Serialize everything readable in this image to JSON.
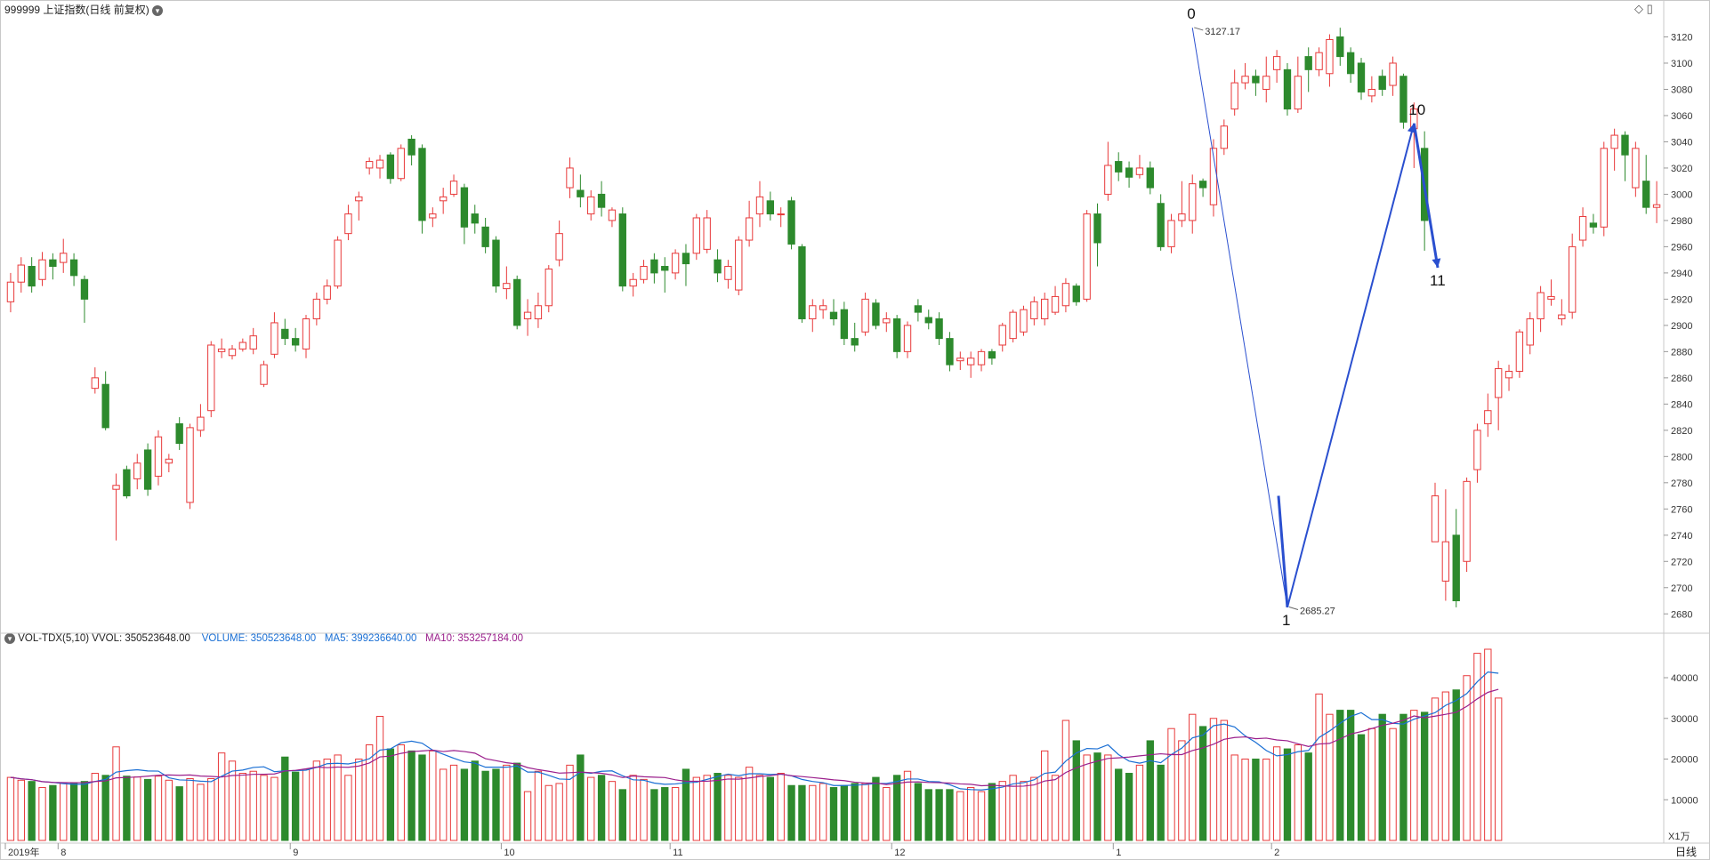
{
  "header": {
    "title": "999999 上证指数(日线 前复权)",
    "toolbar_diamond": "◇",
    "toolbar_box": "▯"
  },
  "volume_header": {
    "indicator": "VOL-TDX(5,10)",
    "vvol": "VVOL: 350523648.00",
    "volume": "VOLUME: 350523648.00",
    "ma5": "MA5: 399236640.00",
    "ma10": "MA10: 353257184.00"
  },
  "footer": {
    "unit": "X1万",
    "period": "日线"
  },
  "colors": {
    "up": "#e8393a",
    "down": "#2d8a2d",
    "ma5": "#1a6fd4",
    "ma10": "#9b1f8c",
    "wave": "#2a4fcf",
    "axis": "#999999"
  },
  "chart_data": [
    {
      "type": "candlestick",
      "title": "999999 上证指数(日线 前复权)",
      "ylim": [
        2670,
        3140
      ],
      "y_ticks": [
        2680,
        2700,
        2720,
        2740,
        2760,
        2780,
        2800,
        2820,
        2840,
        2860,
        2880,
        2900,
        2920,
        2940,
        2960,
        2980,
        3000,
        3020,
        3040,
        3060,
        3080,
        3100,
        3120
      ],
      "x_tick_labels": [
        {
          "index": 0,
          "label": "2019年"
        },
        {
          "index": 5,
          "label": "8"
        },
        {
          "index": 27,
          "label": "9"
        },
        {
          "index": 47,
          "label": "10"
        },
        {
          "index": 63,
          "label": "11"
        },
        {
          "index": 84,
          "label": "12"
        },
        {
          "index": 105,
          "label": "1"
        },
        {
          "index": 120,
          "label": "2"
        }
      ],
      "annotations": [
        {
          "text": "3127.17",
          "index": 112,
          "value": 3127.17
        },
        {
          "text": "2685.27",
          "index": 121,
          "value": 2685.27
        }
      ],
      "wave_points": [
        {
          "label": "0",
          "index": 112,
          "value": 3127
        },
        {
          "label": "1",
          "index": 121,
          "value": 2685
        },
        {
          "label": "10",
          "index": 133,
          "value": 3054
        },
        {
          "label": "11",
          "index": 135,
          "value": 2944
        }
      ],
      "candles": [
        [
          2918,
          2933,
          2940,
          2910
        ],
        [
          2933,
          2946,
          2952,
          2925
        ],
        [
          2945,
          2930,
          2952,
          2925
        ],
        [
          2935,
          2950,
          2956,
          2930
        ],
        [
          2950,
          2945,
          2955,
          2935
        ],
        [
          2948,
          2955,
          2966,
          2940
        ],
        [
          2950,
          2938,
          2955,
          2930
        ],
        [
          2935,
          2920,
          2938,
          2902
        ],
        [
          2852,
          2860,
          2868,
          2848
        ],
        [
          2855,
          2822,
          2865,
          2820
        ],
        [
          2775,
          2778,
          2787,
          2736
        ],
        [
          2790,
          2770,
          2793,
          2768
        ],
        [
          2783,
          2795,
          2802,
          2775
        ],
        [
          2805,
          2775,
          2810,
          2770
        ],
        [
          2785,
          2815,
          2820,
          2778
        ],
        [
          2795,
          2798,
          2802,
          2788
        ],
        [
          2825,
          2810,
          2830,
          2805
        ],
        [
          2765,
          2822,
          2825,
          2760
        ],
        [
          2820,
          2830,
          2840,
          2815
        ],
        [
          2835,
          2885,
          2888,
          2830
        ],
        [
          2880,
          2882,
          2890,
          2875
        ],
        [
          2877,
          2882,
          2885,
          2874
        ],
        [
          2882,
          2887,
          2890,
          2880
        ],
        [
          2882,
          2892,
          2898,
          2878
        ],
        [
          2855,
          2870,
          2873,
          2853
        ],
        [
          2878,
          2902,
          2910,
          2875
        ],
        [
          2897,
          2890,
          2905,
          2885
        ],
        [
          2890,
          2885,
          2898,
          2880
        ],
        [
          2882,
          2905,
          2908,
          2875
        ],
        [
          2905,
          2920,
          2925,
          2900
        ],
        [
          2920,
          2930,
          2935,
          2916
        ],
        [
          2930,
          2965,
          2968,
          2928
        ],
        [
          2970,
          2985,
          2992,
          2965
        ],
        [
          2995,
          2998,
          3002,
          2980
        ],
        [
          3020,
          3025,
          3028,
          3015
        ],
        [
          3020,
          3026,
          3030,
          3012
        ],
        [
          3030,
          3012,
          3032,
          3008
        ],
        [
          3012,
          3035,
          3038,
          3010
        ],
        [
          3042,
          3030,
          3045,
          3022
        ],
        [
          3035,
          2980,
          3038,
          2970
        ],
        [
          2982,
          2985,
          2990,
          2975
        ],
        [
          2995,
          2998,
          3005,
          2985
        ],
        [
          3000,
          3010,
          3015,
          2998
        ],
        [
          3005,
          2975,
          3008,
          2962
        ],
        [
          2985,
          2978,
          2992,
          2970
        ],
        [
          2975,
          2960,
          2982,
          2955
        ],
        [
          2965,
          2930,
          2968,
          2925
        ],
        [
          2928,
          2932,
          2945,
          2920
        ],
        [
          2935,
          2900,
          2938,
          2897
        ],
        [
          2905,
          2910,
          2920,
          2892
        ],
        [
          2905,
          2915,
          2925,
          2898
        ],
        [
          2915,
          2943,
          2946,
          2910
        ],
        [
          2950,
          2970,
          2980,
          2945
        ],
        [
          3005,
          3020,
          3028,
          2997
        ],
        [
          3003,
          2998,
          3015,
          2990
        ],
        [
          2985,
          2998,
          3003,
          2980
        ],
        [
          3000,
          2990,
          3010,
          2983
        ],
        [
          2980,
          2988,
          2990,
          2975
        ],
        [
          2985,
          2930,
          2990,
          2926
        ],
        [
          2930,
          2935,
          2940,
          2922
        ],
        [
          2935,
          2945,
          2950,
          2932
        ],
        [
          2950,
          2940,
          2955,
          2932
        ],
        [
          2945,
          2942,
          2952,
          2925
        ],
        [
          2940,
          2955,
          2958,
          2935
        ],
        [
          2955,
          2947,
          2962,
          2930
        ],
        [
          2955,
          2982,
          2985,
          2950
        ],
        [
          2958,
          2982,
          2988,
          2955
        ],
        [
          2950,
          2940,
          2958,
          2933
        ],
        [
          2935,
          2945,
          2950,
          2928
        ],
        [
          2927,
          2965,
          2968,
          2923
        ],
        [
          2965,
          2982,
          2995,
          2960
        ],
        [
          2985,
          2998,
          3010,
          2975
        ],
        [
          2995,
          2985,
          3002,
          2980
        ],
        [
          2985,
          2985,
          2990,
          2975
        ],
        [
          2995,
          2962,
          2998,
          2958
        ],
        [
          2960,
          2905,
          2962,
          2902
        ],
        [
          2905,
          2915,
          2920,
          2895
        ],
        [
          2912,
          2915,
          2920,
          2905
        ],
        [
          2910,
          2905,
          2920,
          2900
        ],
        [
          2912,
          2890,
          2918,
          2885
        ],
        [
          2890,
          2885,
          2902,
          2880
        ],
        [
          2895,
          2920,
          2925,
          2892
        ],
        [
          2917,
          2900,
          2920,
          2897
        ],
        [
          2902,
          2905,
          2910,
          2895
        ],
        [
          2905,
          2880,
          2908,
          2875
        ],
        [
          2880,
          2900,
          2903,
          2875
        ],
        [
          2915,
          2910,
          2920,
          2903
        ],
        [
          2906,
          2902,
          2912,
          2897
        ],
        [
          2905,
          2890,
          2910,
          2885
        ],
        [
          2890,
          2870,
          2895,
          2865
        ],
        [
          2873,
          2875,
          2880,
          2866
        ],
        [
          2870,
          2875,
          2880,
          2860
        ],
        [
          2870,
          2880,
          2882,
          2865
        ],
        [
          2880,
          2875,
          2882,
          2870
        ],
        [
          2885,
          2900,
          2902,
          2880
        ],
        [
          2890,
          2910,
          2912,
          2887
        ],
        [
          2895,
          2912,
          2915,
          2892
        ],
        [
          2905,
          2918,
          2922,
          2900
        ],
        [
          2905,
          2920,
          2925,
          2900
        ],
        [
          2910,
          2922,
          2930,
          2908
        ],
        [
          2915,
          2932,
          2936,
          2910
        ],
        [
          2930,
          2918,
          2932,
          2915
        ],
        [
          2920,
          2985,
          2988,
          2918
        ],
        [
          2985,
          2963,
          2993,
          2945
        ],
        [
          3000,
          3022,
          3040,
          2995
        ],
        [
          3025,
          3017,
          3032,
          3010
        ],
        [
          3020,
          3013,
          3025,
          3005
        ],
        [
          3015,
          3020,
          3030,
          3012
        ],
        [
          3020,
          3005,
          3025,
          3000
        ],
        [
          2993,
          2960,
          3000,
          2957
        ],
        [
          2960,
          2980,
          2985,
          2955
        ],
        [
          2980,
          2985,
          3010,
          2975
        ],
        [
          2980,
          3008,
          3015,
          2970
        ],
        [
          3010,
          3005,
          3012,
          2998
        ],
        [
          2992,
          3035,
          3042,
          2983
        ],
        [
          3035,
          3052,
          3057,
          3030
        ],
        [
          3065,
          3085,
          3095,
          3060
        ],
        [
          3085,
          3090,
          3100,
          3080
        ],
        [
          3090,
          3085,
          3095,
          3075
        ],
        [
          3080,
          3090,
          3105,
          3070
        ],
        [
          3095,
          3105,
          3110,
          3085
        ],
        [
          3095,
          3065,
          3100,
          3060
        ],
        [
          3065,
          3090,
          3105,
          3062
        ],
        [
          3105,
          3095,
          3112,
          3078
        ],
        [
          3095,
          3108,
          3112,
          3090
        ],
        [
          3092,
          3118,
          3122,
          3082
        ],
        [
          3120,
          3105,
          3127,
          3098
        ],
        [
          3108,
          3092,
          3112,
          3085
        ],
        [
          3100,
          3078,
          3104,
          3072
        ],
        [
          3075,
          3080,
          3090,
          3070
        ],
        [
          3090,
          3080,
          3095,
          3075
        ],
        [
          3083,
          3100,
          3105,
          3075
        ],
        [
          3090,
          3055,
          3092,
          3050
        ],
        [
          3050,
          3065,
          3070,
          3020
        ],
        [
          3035,
          2980,
          3048,
          2957
        ],
        [
          2735,
          2770,
          2780,
          2735
        ],
        [
          2705,
          2735,
          2775,
          2690
        ],
        [
          2740,
          2690,
          2760,
          2685
        ],
        [
          2720,
          2781,
          2784,
          2712
        ],
        [
          2790,
          2820,
          2825,
          2780
        ]
      ],
      "candles_tail": [
        [
          2825,
          2835,
          2848,
          2815
        ],
        [
          2845,
          2867,
          2873,
          2820
        ],
        [
          2860,
          2865,
          2870,
          2850
        ],
        [
          2865,
          2895,
          2897,
          2860
        ],
        [
          2885,
          2905,
          2910,
          2878
        ],
        [
          2905,
          2925,
          2930,
          2895
        ],
        [
          2920,
          2922,
          2935,
          2915
        ],
        [
          2905,
          2908,
          2920,
          2900
        ],
        [
          2910,
          2960,
          2970,
          2905
        ],
        [
          2965,
          2983,
          2990,
          2960
        ],
        [
          2978,
          2975,
          2985,
          2970
        ],
        [
          2975,
          3035,
          3040,
          2968
        ],
        [
          3035,
          3045,
          3050,
          3018
        ],
        [
          3045,
          3030,
          3048,
          3010
        ],
        [
          3005,
          3035,
          3040,
          2998
        ],
        [
          3010,
          2990,
          3030,
          2985
        ],
        [
          2990,
          2992,
          3010,
          2978
        ]
      ]
    },
    {
      "type": "bar",
      "title": "VOL-TDX(5,10)",
      "ylim": [
        0,
        47000
      ],
      "y_ticks": [
        10000,
        20000,
        30000,
        40000
      ],
      "series": [
        {
          "name": "VOLUME",
          "values": [
            15500,
            14800,
            14500,
            13000,
            13500,
            14000,
            14000,
            14500,
            16500,
            16000,
            23000,
            15800,
            15600,
            15000,
            15800,
            14800,
            13200,
            15200,
            13800,
            15200,
            21500,
            19500,
            16500,
            17000,
            16000,
            15500,
            20500,
            16800,
            17500,
            19500,
            20000,
            21000,
            16000,
            20000,
            23500,
            30500,
            22500,
            23500,
            22000,
            21000,
            22000,
            17500,
            18500,
            17500,
            19500,
            17000,
            17500,
            18500,
            19000,
            12000,
            17000,
            13500,
            14000,
            18500,
            21000,
            15500,
            16000,
            14500,
            12500,
            16000,
            15000,
            12500,
            13000,
            13000,
            17500,
            15500,
            16000,
            16500,
            16000,
            15500,
            18000,
            16000,
            15500,
            16500,
            13500,
            13500,
            13500,
            14000,
            13000,
            13500,
            14000,
            14000,
            15500,
            13000,
            16000,
            17000,
            14000,
            12500,
            12500,
            12500,
            12000,
            13000,
            12000,
            14000,
            14500,
            16000,
            14500,
            15500,
            22000,
            16000,
            29500,
            24500,
            21000,
            21500,
            21000,
            17500,
            16500,
            18500,
            24500,
            18500,
            27500,
            24500,
            31000,
            28000,
            30000,
            29500,
            21000,
            20000,
            20000,
            20000,
            23000,
            22500,
            23500,
            21500,
            36000,
            31000,
            32000,
            32000,
            26000,
            27500,
            31000,
            27500,
            31000,
            32000,
            31500,
            35000,
            36500,
            37000,
            40500,
            46000,
            47000,
            35000
          ]
        }
      ],
      "ma5_last": 39923,
      "ma10_last": 35325
    }
  ]
}
